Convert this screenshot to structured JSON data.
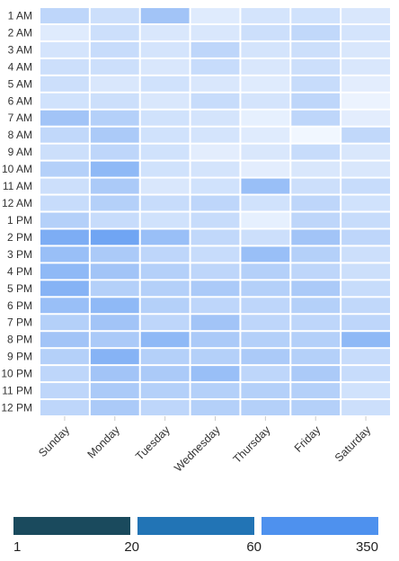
{
  "chart_data": {
    "type": "heatmap",
    "rows": [
      "1 AM",
      "2 AM",
      "3 AM",
      "4 AM",
      "5 AM",
      "6 AM",
      "7 AM",
      "8 AM",
      "9 AM",
      "10 AM",
      "11 AM",
      "12 AM",
      "1 PM",
      "2 PM",
      "3 PM",
      "4 PM",
      "5 PM",
      "6 PM",
      "7 PM",
      "8 PM",
      "9 PM",
      "10 PM",
      "11 PM",
      "12 PM"
    ],
    "columns": [
      "Sunday",
      "Monday",
      "Tuesday",
      "Wednesday",
      "Thursday",
      "Friday",
      "Saturday"
    ],
    "values": [
      [
        0.3,
        0.22,
        0.45,
        0.12,
        0.18,
        0.2,
        0.15
      ],
      [
        0.12,
        0.22,
        0.15,
        0.15,
        0.22,
        0.28,
        0.18
      ],
      [
        0.18,
        0.25,
        0.18,
        0.3,
        0.18,
        0.22,
        0.15
      ],
      [
        0.22,
        0.22,
        0.15,
        0.25,
        0.15,
        0.22,
        0.15
      ],
      [
        0.22,
        0.15,
        0.2,
        0.15,
        0.12,
        0.25,
        0.1
      ],
      [
        0.2,
        0.22,
        0.15,
        0.25,
        0.18,
        0.3,
        0.05
      ],
      [
        0.45,
        0.35,
        0.2,
        0.18,
        0.08,
        0.3,
        0.1
      ],
      [
        0.28,
        0.4,
        0.2,
        0.18,
        0.12,
        0.02,
        0.28
      ],
      [
        0.22,
        0.3,
        0.2,
        0.1,
        0.15,
        0.25,
        0.15
      ],
      [
        0.35,
        0.55,
        0.2,
        0.18,
        0.1,
        0.15,
        0.15
      ],
      [
        0.22,
        0.4,
        0.15,
        0.2,
        0.5,
        0.22,
        0.25
      ],
      [
        0.25,
        0.35,
        0.25,
        0.3,
        0.2,
        0.3,
        0.2
      ],
      [
        0.35,
        0.25,
        0.2,
        0.25,
        0.08,
        0.3,
        0.25
      ],
      [
        0.65,
        0.72,
        0.5,
        0.28,
        0.22,
        0.45,
        0.3
      ],
      [
        0.5,
        0.4,
        0.3,
        0.25,
        0.5,
        0.35,
        0.22
      ],
      [
        0.55,
        0.45,
        0.35,
        0.3,
        0.35,
        0.3,
        0.22
      ],
      [
        0.6,
        0.35,
        0.35,
        0.4,
        0.35,
        0.4,
        0.25
      ],
      [
        0.5,
        0.55,
        0.35,
        0.3,
        0.3,
        0.35,
        0.28
      ],
      [
        0.35,
        0.45,
        0.3,
        0.45,
        0.3,
        0.3,
        0.3
      ],
      [
        0.45,
        0.4,
        0.55,
        0.4,
        0.35,
        0.35,
        0.55
      ],
      [
        0.35,
        0.6,
        0.35,
        0.35,
        0.4,
        0.35,
        0.25
      ],
      [
        0.3,
        0.45,
        0.4,
        0.5,
        0.3,
        0.4,
        0.25
      ],
      [
        0.3,
        0.4,
        0.35,
        0.35,
        0.35,
        0.35,
        0.2
      ],
      [
        0.3,
        0.4,
        0.3,
        0.35,
        0.35,
        0.35,
        0.22
      ]
    ],
    "color_scale": {
      "low": "#f5f9ff",
      "high": "#3c84ee",
      "note": "values are relative intensities 0-1 estimated from cell shading"
    },
    "legend": {
      "bins": [
        {
          "color": "#1a4a5d"
        },
        {
          "color": "#2274b5"
        },
        {
          "color": "#4e91ee"
        }
      ],
      "ticks": [
        "1",
        "20",
        "60",
        "350"
      ]
    }
  }
}
